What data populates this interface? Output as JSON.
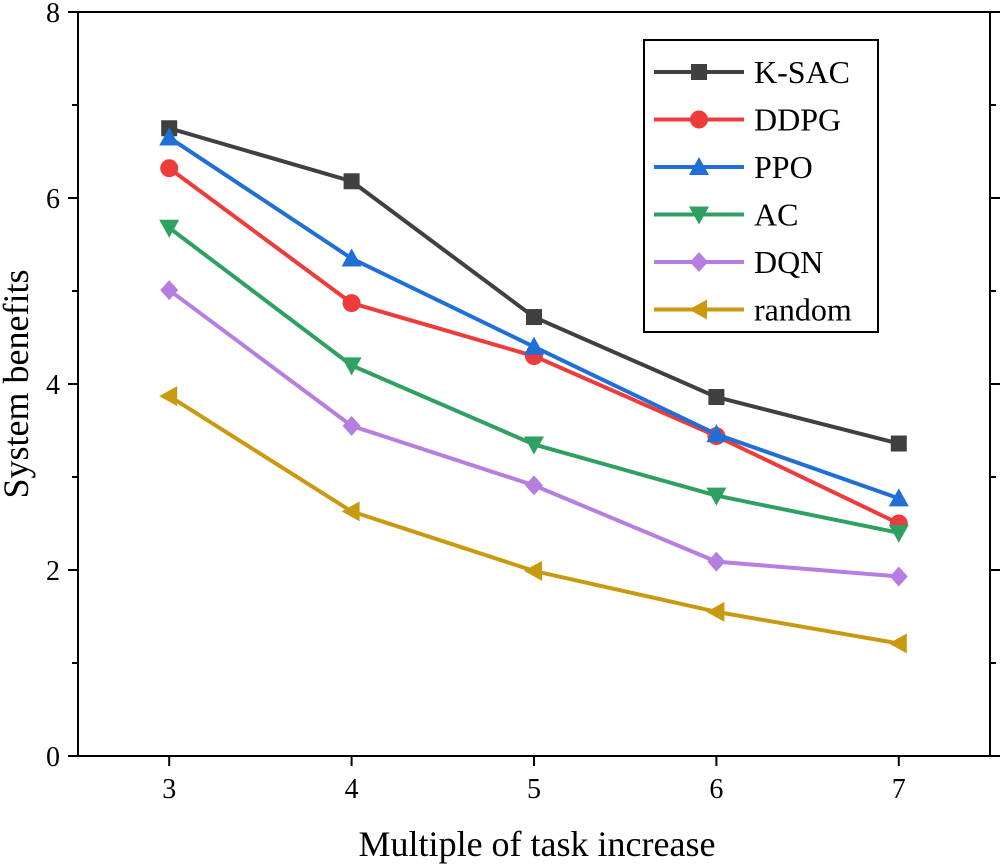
{
  "chart_data": {
    "type": "line",
    "title": "",
    "xlabel": "Multiple of task increase",
    "ylabel": "System benefits",
    "x": [
      3,
      4,
      5,
      6,
      7
    ],
    "xlim": [
      2.5,
      7.5
    ],
    "ylim": [
      0,
      8
    ],
    "xticks": [
      "3",
      "4",
      "5",
      "6",
      "7"
    ],
    "yticks": [
      "0",
      "2",
      "4",
      "6",
      "8"
    ],
    "legend_position": "top-right",
    "grid": false,
    "series": [
      {
        "name": "K-SAC",
        "color": "#404040",
        "marker": "square",
        "values": [
          6.75,
          6.18,
          4.72,
          3.86,
          3.36
        ]
      },
      {
        "name": "DDPG",
        "color": "#ee3b3b",
        "marker": "circle",
        "values": [
          6.32,
          4.87,
          4.3,
          3.44,
          2.5
        ]
      },
      {
        "name": "PPO",
        "color": "#1f6fd6",
        "marker": "triangle-up",
        "values": [
          6.65,
          5.35,
          4.4,
          3.46,
          2.77
        ]
      },
      {
        "name": "AC",
        "color": "#2ea062",
        "marker": "triangle-down",
        "values": [
          5.68,
          4.2,
          3.35,
          2.8,
          2.4
        ]
      },
      {
        "name": "DQN",
        "color": "#b57ee0",
        "marker": "diamond",
        "values": [
          5.01,
          3.55,
          2.91,
          2.09,
          1.93
        ]
      },
      {
        "name": "random",
        "color": "#c99a10",
        "marker": "triangle-left",
        "values": [
          3.87,
          2.63,
          1.99,
          1.55,
          1.21
        ]
      }
    ]
  }
}
